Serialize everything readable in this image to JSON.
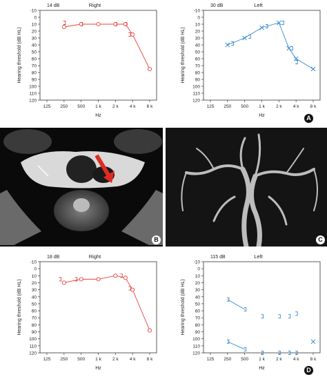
{
  "chart_data": [
    {
      "id": "A-right",
      "type": "line",
      "corner_label": "14 dB",
      "title": "Right",
      "xlabel": "Hz",
      "ylabel": "Hearing threshold (dB HL)",
      "categories": [
        "125",
        "250",
        "500",
        "1 k",
        "2 k",
        "4 k",
        "8 k"
      ],
      "yticks": [
        -10,
        0,
        10,
        20,
        30,
        40,
        50,
        60,
        70,
        80,
        90,
        100,
        110,
        120
      ],
      "ylim": [
        -10,
        120
      ],
      "color": "#e8403c",
      "series": [
        {
          "marker": "circle",
          "x": [
            250,
            500,
            1000,
            2000,
            3000,
            4000,
            8000
          ],
          "y": [
            14,
            10,
            10,
            10,
            10,
            25,
            75
          ]
        },
        {
          "marker": "bracket",
          "x": [
            250,
            500,
            2000,
            3000,
            3500
          ],
          "y": [
            8,
            10,
            10,
            10,
            25
          ]
        }
      ]
    },
    {
      "id": "A-left",
      "type": "line",
      "corner_label": "30 dB",
      "title": "Left",
      "xlabel": "Hz",
      "ylabel": "Hearing threshold (dB HL)",
      "categories": [
        "125",
        "250",
        "500",
        "1 k",
        "2 k",
        "4 k",
        "8 k"
      ],
      "yticks": [
        -10,
        0,
        10,
        20,
        30,
        40,
        50,
        60,
        70,
        80,
        90,
        100,
        110,
        120
      ],
      "ylim": [
        -10,
        120
      ],
      "color": "#2f86d6",
      "series": [
        {
          "marker": "cross",
          "x": [
            250,
            500,
            1000,
            2000,
            3000,
            4000,
            8000
          ],
          "y": [
            40,
            30,
            15,
            8,
            45,
            60,
            75
          ]
        },
        {
          "marker": "bracket",
          "x": [
            300,
            600,
            1200,
            2300,
            3300,
            4000
          ],
          "y": [
            38,
            28,
            13,
            8,
            45,
            65
          ]
        }
      ]
    },
    {
      "id": "D-right",
      "type": "line",
      "corner_label": "18 dB",
      "title": "Right",
      "xlabel": "Hz",
      "ylabel": "Hearing threshold (dB HL)",
      "categories": [
        "125",
        "250",
        "500",
        "1 k",
        "2 k",
        "4 k",
        "8 k"
      ],
      "yticks": [
        -10,
        0,
        10,
        20,
        30,
        40,
        50,
        60,
        70,
        80,
        90,
        100,
        110,
        120
      ],
      "ylim": [
        -10,
        120
      ],
      "color": "#e8403c",
      "series": [
        {
          "marker": "circle",
          "x": [
            250,
            500,
            1000,
            2000,
            3000,
            4000,
            8000
          ],
          "y": [
            20,
            15,
            15,
            10,
            13,
            30,
            88
          ]
        },
        {
          "marker": "bracket",
          "x": [
            210,
            400,
            2500,
            3500
          ],
          "y": [
            15,
            15,
            10,
            28
          ]
        }
      ]
    },
    {
      "id": "D-left",
      "type": "line",
      "corner_label": "115 dB",
      "title": "Left",
      "xlabel": "Hz",
      "ylabel": "Hearing threshold (dB HL)",
      "categories": [
        "125",
        "250",
        "500",
        "1 k",
        "2 k",
        "4 k",
        "8 k"
      ],
      "yticks": [
        -10,
        0,
        10,
        20,
        30,
        40,
        50,
        60,
        70,
        80,
        90,
        100,
        110,
        120
      ],
      "ylim": [
        -10,
        120
      ],
      "color": "#2f86d6",
      "series": [
        {
          "marker": "bracket",
          "connect": true,
          "x": [
            250,
            500
          ],
          "y": [
            44,
            58
          ]
        },
        {
          "marker": "bracket",
          "connect": false,
          "x": [
            1000,
            2000,
            3000,
            4000
          ],
          "y": [
            68,
            68,
            68,
            64
          ]
        },
        {
          "marker": "bracket",
          "connect": true,
          "x": [
            250,
            500
          ],
          "y": [
            104,
            115
          ]
        },
        {
          "marker": "bracket",
          "connect": false,
          "x": [
            1000,
            2000,
            3000,
            4000
          ],
          "y": [
            120,
            120,
            120,
            120
          ]
        },
        {
          "marker": "cross",
          "connect": false,
          "x": [
            8000
          ],
          "y": [
            104
          ]
        }
      ]
    }
  ],
  "panels": {
    "A": "A",
    "B": "B",
    "C": "C",
    "D": "D"
  }
}
